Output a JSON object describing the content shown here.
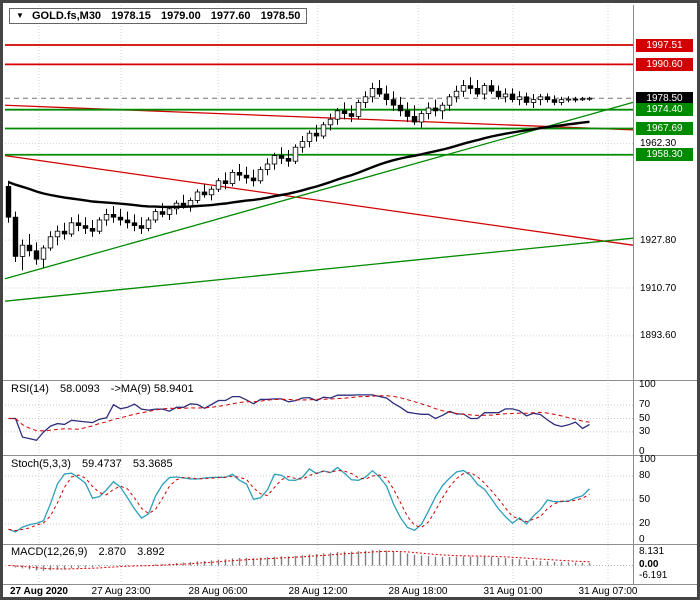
{
  "header": {
    "symbol": "GOLD.fs,M30",
    "open": "1978.15",
    "high": "1979.00",
    "low": "1977.60",
    "close": "1978.50"
  },
  "chart_data": {
    "type": "candlestick",
    "title": "GOLD.fs,M30",
    "timeframe": "M30",
    "last_ohlc": {
      "open": 1978.15,
      "high": 1979.0,
      "low": 1977.6,
      "close": 1978.5
    },
    "price_axis": {
      "min": 1878.2,
      "max": 2011.8,
      "grid_labels": [
        "1962.30",
        "1927.80",
        "1910.70",
        "1893.60"
      ]
    },
    "time_labels": [
      "27 Aug 2020",
      "27 Aug 23:00",
      "28 Aug 06:00",
      "28 Aug 12:00",
      "28 Aug 18:00",
      "31 Aug 01:00",
      "31 Aug 07:00"
    ],
    "levels": [
      {
        "label": "1997.51",
        "price": 1997.51,
        "color": "#d20000",
        "style": "solid"
      },
      {
        "label": "1990.60",
        "price": 1990.6,
        "color": "#d20000",
        "style": "solid"
      },
      {
        "label": "1978.50",
        "price": 1978.5,
        "color": "#000000",
        "style": "dashed"
      },
      {
        "label": "1974.40",
        "price": 1974.4,
        "color": "#008a00",
        "style": "solid"
      },
      {
        "label": "1967.69",
        "price": 1967.69,
        "color": "#008a00",
        "style": "solid"
      },
      {
        "label": "1958.30",
        "price": 1958.3,
        "color": "#008a00",
        "style": "solid"
      }
    ],
    "trendlines": [
      {
        "color": "#d20000",
        "p_start": 1976.0,
        "p_end": 1967.2
      },
      {
        "color": "#d20000",
        "p_start": 1958.0,
        "p_end": 1926.0
      },
      {
        "color": "#008a00",
        "p_start": 1914.0,
        "p_end": 1977.0
      },
      {
        "color": "#008a00",
        "p_start": 1906.0,
        "p_end": 1928.5
      }
    ],
    "colors": {
      "bull": "#ffffff",
      "bear": "#000000",
      "wick": "#000000",
      "ma": "#000000",
      "rsi": "#2e2e7e",
      "rsi_ma": "#d20000",
      "stoch_k": "#2a9fba",
      "stoch_d": "#d20000",
      "macd_hist": "#7f7f7f",
      "macd_signal": "#d20000",
      "grid": "#d2d2d2"
    },
    "candles": [
      [
        1947,
        1949,
        1934,
        1936
      ],
      [
        1936,
        1938,
        1920,
        1922
      ],
      [
        1922,
        1928,
        1917,
        1926
      ],
      [
        1926,
        1930,
        1922,
        1924
      ],
      [
        1924,
        1927,
        1919,
        1921
      ],
      [
        1921,
        1926,
        1918,
        1925
      ],
      [
        1925,
        1931,
        1924,
        1929
      ],
      [
        1929,
        1933,
        1926,
        1931
      ],
      [
        1931,
        1934,
        1928,
        1930
      ],
      [
        1930,
        1936,
        1929,
        1934
      ],
      [
        1934,
        1937,
        1931,
        1933
      ],
      [
        1933,
        1936,
        1930,
        1932
      ],
      [
        1932,
        1935,
        1929,
        1931
      ],
      [
        1931,
        1936,
        1930,
        1935
      ],
      [
        1935,
        1939,
        1933,
        1937
      ],
      [
        1937,
        1940,
        1934,
        1936
      ],
      [
        1936,
        1939,
        1933,
        1935
      ],
      [
        1935,
        1938,
        1932,
        1934
      ],
      [
        1934,
        1937,
        1931,
        1933
      ],
      [
        1933,
        1936,
        1930,
        1932
      ],
      [
        1932,
        1936,
        1931,
        1935
      ],
      [
        1935,
        1939,
        1934,
        1938
      ],
      [
        1938,
        1941,
        1936,
        1937
      ],
      [
        1937,
        1940,
        1935,
        1939
      ],
      [
        1939,
        1942,
        1937,
        1941
      ],
      [
        1941,
        1944,
        1939,
        1940
      ],
      [
        1940,
        1943,
        1938,
        1942
      ],
      [
        1942,
        1946,
        1941,
        1945
      ],
      [
        1945,
        1948,
        1943,
        1944
      ],
      [
        1944,
        1947,
        1942,
        1946
      ],
      [
        1946,
        1950,
        1945,
        1949
      ],
      [
        1949,
        1952,
        1946,
        1948
      ],
      [
        1948,
        1953,
        1947,
        1952
      ],
      [
        1952,
        1955,
        1949,
        1951
      ],
      [
        1951,
        1954,
        1948,
        1950
      ],
      [
        1950,
        1953,
        1947,
        1949
      ],
      [
        1949,
        1954,
        1948,
        1953
      ],
      [
        1953,
        1957,
        1951,
        1955
      ],
      [
        1955,
        1959,
        1953,
        1958
      ],
      [
        1958,
        1961,
        1955,
        1957
      ],
      [
        1957,
        1960,
        1954,
        1956
      ],
      [
        1956,
        1962,
        1955,
        1961
      ],
      [
        1961,
        1965,
        1959,
        1963
      ],
      [
        1963,
        1967,
        1961,
        1966
      ],
      [
        1966,
        1969,
        1963,
        1965
      ],
      [
        1965,
        1970,
        1964,
        1969
      ],
      [
        1969,
        1973,
        1967,
        1971
      ],
      [
        1971,
        1975,
        1969,
        1974
      ],
      [
        1974,
        1977,
        1971,
        1973
      ],
      [
        1973,
        1976,
        1970,
        1972
      ],
      [
        1972,
        1978,
        1971,
        1977
      ],
      [
        1977,
        1981,
        1975,
        1979
      ],
      [
        1979,
        1984,
        1977,
        1982
      ],
      [
        1982,
        1985,
        1979,
        1980
      ],
      [
        1980,
        1983,
        1976,
        1978
      ],
      [
        1978,
        1981,
        1974,
        1976
      ],
      [
        1976,
        1979,
        1972,
        1974
      ],
      [
        1974,
        1977,
        1970,
        1972
      ],
      [
        1972,
        1976,
        1969,
        1970
      ],
      [
        1970,
        1974,
        1968,
        1973
      ],
      [
        1973,
        1977,
        1971,
        1975
      ],
      [
        1975,
        1978,
        1972,
        1974
      ],
      [
        1974,
        1977,
        1971,
        1976
      ],
      [
        1976,
        1980,
        1974,
        1979
      ],
      [
        1979,
        1983,
        1977,
        1981
      ],
      [
        1981,
        1985,
        1979,
        1983
      ],
      [
        1983,
        1986,
        1980,
        1982
      ],
      [
        1982,
        1985,
        1979,
        1980
      ],
      [
        1980,
        1984,
        1978,
        1983
      ],
      [
        1983,
        1985,
        1980,
        1981
      ],
      [
        1981,
        1983,
        1978,
        1979
      ],
      [
        1979,
        1982,
        1977,
        1980
      ],
      [
        1980,
        1982,
        1977,
        1978
      ],
      [
        1978,
        1981,
        1976,
        1979
      ],
      [
        1979,
        1980.5,
        1976,
        1977
      ],
      [
        1977,
        1980,
        1975,
        1978
      ],
      [
        1978,
        1980,
        1976,
        1979
      ],
      [
        1979,
        1980.2,
        1977,
        1978
      ],
      [
        1978,
        1979.5,
        1976,
        1977
      ],
      [
        1977,
        1979,
        1976,
        1978
      ],
      [
        1978,
        1979.2,
        1977,
        1978.2
      ],
      [
        1978.2,
        1979,
        1977,
        1978
      ],
      [
        1978,
        1979,
        1977.5,
        1978.3
      ],
      [
        1978.15,
        1979,
        1977.6,
        1978.5
      ]
    ],
    "indicators": {
      "rsi": {
        "period": 14,
        "ma_period": 9,
        "value": 58.0093,
        "ma_value": 58.9401
      },
      "stoch": {
        "k_period": 5,
        "d_period": 3,
        "slowing": 3,
        "value_k": 59.4737,
        "value_d": 53.3685
      },
      "macd": {
        "fast_ema": 12,
        "slow_ema": 26,
        "signal_period": 9,
        "value": 2.87,
        "signal": 3.892,
        "scale_max": 8.131,
        "scale_min": -6.191
      }
    }
  },
  "panels": {
    "rsi": {
      "title": "RSI(14)",
      "value": "58.0093",
      "ma_title": "->MA(9)",
      "ma_value": "58.9401",
      "scale": [
        "100",
        "70",
        "50",
        "30",
        "0"
      ]
    },
    "stoch": {
      "title": "Stoch(5,3,3)",
      "value_k": "59.4737",
      "value_d": "53.3685",
      "scale": [
        "100",
        "80",
        "50",
        "20",
        "0"
      ]
    },
    "macd": {
      "title": "MACD(12,26,9)",
      "value": "2.870",
      "signal_value": "3.892",
      "scale": [
        "8.131",
        "0.00",
        "-6.191"
      ]
    }
  }
}
